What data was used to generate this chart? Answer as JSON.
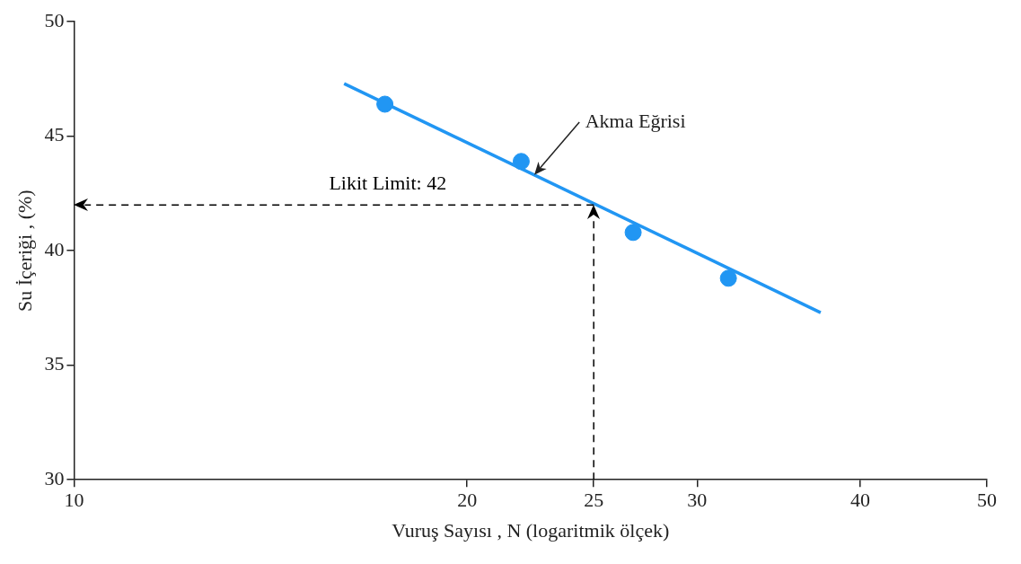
{
  "chart_data": {
    "type": "scatter",
    "xlabel": "Vuruş Sayısı , N (logaritmik ölçek)",
    "ylabel": "Su İçeriği , (%)",
    "log": "x",
    "xlim": [
      10,
      50
    ],
    "xticks": [
      10,
      20,
      25,
      30,
      40,
      50
    ],
    "ylim": [
      30,
      50
    ],
    "yticks": [
      30,
      35,
      40,
      45,
      50
    ],
    "grid": false,
    "marker": "circle",
    "series": [
      {
        "type": "scatter",
        "color": "#2196f3",
        "x": [
          17.3,
          22,
          26.8,
          31.7
        ],
        "values": [
          46.4,
          43.9,
          40.8,
          38.8
        ]
      },
      {
        "type": "line",
        "color": "#2196f3",
        "x": [
          16.1,
          37.3
        ],
        "values": [
          47.3,
          37.3
        ],
        "marker": "none"
      }
    ],
    "ref_lines": [
      {
        "axis": "y",
        "value": 42,
        "label": "Likit Limit: 42",
        "color": "#000000",
        "line_style": "dashed"
      },
      {
        "axis": "x",
        "value": 25,
        "label": null,
        "color": "#000000",
        "line_style": "dashed"
      }
    ],
    "annotations": [
      "Akma Eğrisi"
    ]
  }
}
